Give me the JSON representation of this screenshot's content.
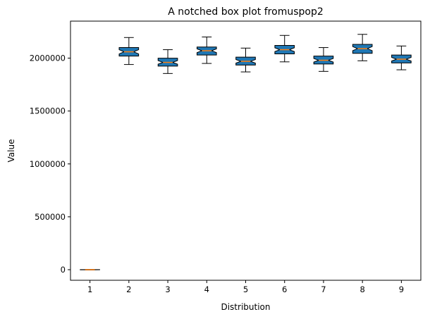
{
  "chart_data": {
    "type": "boxplot",
    "title": "A notched box plot fromuspop2",
    "xlabel": "Distribution",
    "ylabel": "Value",
    "ylim": [
      -100000,
      2350000
    ],
    "categories": [
      "1",
      "2",
      "3",
      "4",
      "5",
      "6",
      "7",
      "8",
      "9"
    ],
    "y_ticks": [
      {
        "value": 0,
        "label": "0"
      },
      {
        "value": 500000,
        "label": "500000"
      },
      {
        "value": 1000000,
        "label": "1000000"
      },
      {
        "value": 1500000,
        "label": "1500000"
      },
      {
        "value": 2000000,
        "label": "2000000"
      }
    ],
    "grid": false,
    "legend": "none",
    "notched": true,
    "box_fill_color": "#1f77b4",
    "median_color": "#ff7f0e",
    "boxes": [
      {
        "label": "1",
        "whislo": -2000,
        "q1": -600,
        "med": 0,
        "q3": 600,
        "whishi": 2000,
        "notch_lo": -400,
        "notch_hi": 400
      },
      {
        "label": "2",
        "whislo": 1940000,
        "q1": 2020000,
        "med": 2060000,
        "q3": 2100000,
        "whishi": 2195000,
        "notch_lo": 2040000,
        "notch_hi": 2080000
      },
      {
        "label": "3",
        "whislo": 1855000,
        "q1": 1925000,
        "med": 1960000,
        "q3": 2000000,
        "whishi": 2080000,
        "notch_lo": 1943000,
        "notch_hi": 1977000
      },
      {
        "label": "4",
        "whislo": 1950000,
        "q1": 2030000,
        "med": 2070000,
        "q3": 2105000,
        "whishi": 2200000,
        "notch_lo": 2052000,
        "notch_hi": 2088000
      },
      {
        "label": "5",
        "whislo": 1870000,
        "q1": 1935000,
        "med": 1970000,
        "q3": 2010000,
        "whishi": 2095000,
        "notch_lo": 1953000,
        "notch_hi": 1987000
      },
      {
        "label": "6",
        "whislo": 1965000,
        "q1": 2040000,
        "med": 2080000,
        "q3": 2120000,
        "whishi": 2215000,
        "notch_lo": 2062000,
        "notch_hi": 2098000
      },
      {
        "label": "7",
        "whislo": 1875000,
        "q1": 1945000,
        "med": 1980000,
        "q3": 2020000,
        "whishi": 2100000,
        "notch_lo": 1963000,
        "notch_hi": 1997000
      },
      {
        "label": "8",
        "whislo": 1975000,
        "q1": 2045000,
        "med": 2090000,
        "q3": 2130000,
        "whishi": 2225000,
        "notch_lo": 2071000,
        "notch_hi": 2109000
      },
      {
        "label": "9",
        "whislo": 1890000,
        "q1": 1955000,
        "med": 1990000,
        "q3": 2030000,
        "whishi": 2115000,
        "notch_lo": 1973000,
        "notch_hi": 2007000
      }
    ]
  }
}
